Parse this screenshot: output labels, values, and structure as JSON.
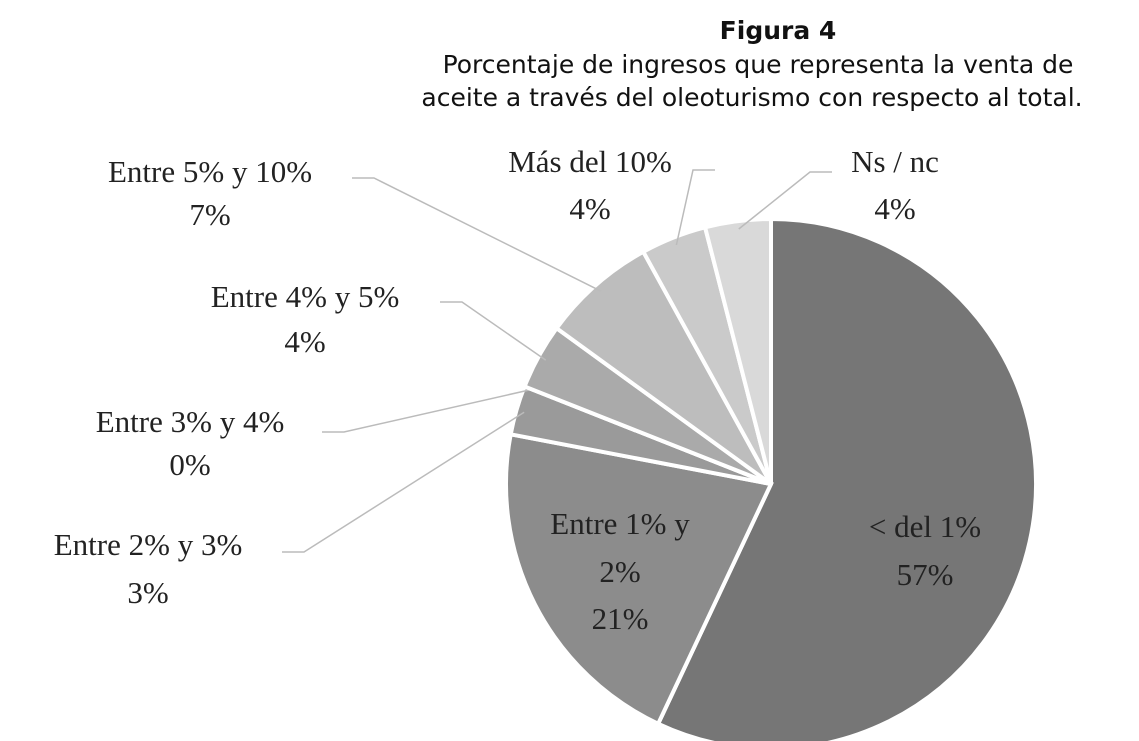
{
  "chart_data": {
    "type": "pie",
    "title": "Figura 4",
    "subtitle": [
      "Porcentaje de ingresos que representa la venta de",
      "aceite a través del oleoturismo con respecto al total."
    ],
    "categories": [
      "< del 1%",
      "Entre 1% y 2%",
      "Entre 2% y 3%",
      "Entre 3% y 4%",
      "Entre 4% y 5%",
      "Entre 5% y 10%",
      "Más del 10%",
      "Ns / nc"
    ],
    "values": [
      57,
      21,
      3,
      0,
      4,
      7,
      4,
      4
    ],
    "value_labels": [
      "57%",
      "21%",
      "3%",
      "0%",
      "4%",
      "7%",
      "4%",
      "4%"
    ],
    "colors": [
      "#767676",
      "#8c8c8c",
      "#9a9a9a",
      "#a2a2a2",
      "#aaaaaa",
      "#bdbdbd",
      "#cacaca",
      "#d9d9d9"
    ]
  }
}
